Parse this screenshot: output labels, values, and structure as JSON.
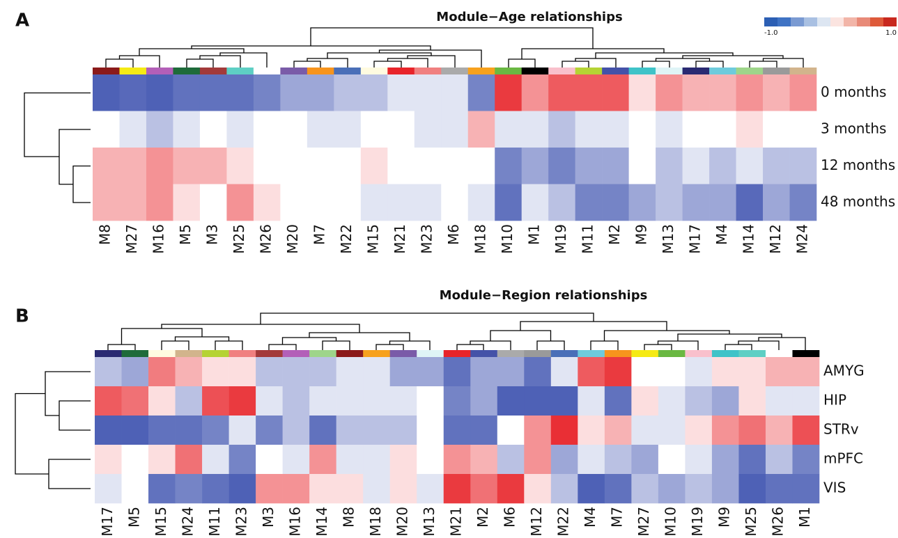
{
  "module_colors": {
    "M1": "#000000",
    "M2": "#4452a8",
    "M3": "#a33a3a",
    "M4": "#6ecbdc",
    "M5": "#1e6b3a",
    "M6": "#aaaaaa",
    "M7": "#f7941d",
    "M8": "#8b1a1a",
    "M9": "#3fc3c8",
    "M10": "#6ab842",
    "M11": "#b5d334",
    "M12": "#9a9a9a",
    "M13": "#dff4f6",
    "M14": "#9ed58a",
    "M15": "#fffbe0",
    "M16": "#b35fb8",
    "M17": "#2a2a72",
    "M18": "#f7a11d",
    "M19": "#f9c0cc",
    "M20": "#7a5ba8",
    "M21": "#e8242a",
    "M22": "#4a6fb8",
    "M23": "#f08080",
    "M24": "#d2b48c",
    "M25": "#5ecfc4",
    "M26": "#ffffff",
    "M27": "#f5ea14"
  },
  "colorscale": {
    "low": "#3a4fae",
    "mid": "#ffffff",
    "high": "#e8242a"
  },
  "colorbar": {
    "colors": [
      "#2c5fb4",
      "#3f73c4",
      "#7a9ad2",
      "#a9c0e2",
      "#dde6f2",
      "#fbe4e0",
      "#f2b5a8",
      "#e88a78",
      "#de5a3a",
      "#c8281e"
    ],
    "ticks": [
      {
        "value": -1,
        "label": "-1.0"
      },
      {
        "value": 1,
        "label": "1.0"
      }
    ]
  },
  "chart_data": [
    {
      "type": "heatmap",
      "panel": "A",
      "title": "Module−Age relationships",
      "x_categories": [
        "M8",
        "M27",
        "M16",
        "M5",
        "M3",
        "M25",
        "M26",
        "M20",
        "M7",
        "M22",
        "M15",
        "M21",
        "M23",
        "M6",
        "M18",
        "M10",
        "M1",
        "M19",
        "M11",
        "M2",
        "M9",
        "M13",
        "M17",
        "M4",
        "M14",
        "M12",
        "M24"
      ],
      "y_categories": [
        "0 months",
        "3 months",
        "12 months",
        "48 months"
      ],
      "values": [
        [
          -0.9,
          -0.85,
          -0.9,
          -0.8,
          -0.8,
          -0.8,
          -0.7,
          -0.5,
          -0.5,
          -0.35,
          -0.35,
          -0.15,
          -0.15,
          -0.15,
          -0.7,
          0.9,
          0.5,
          0.75,
          0.75,
          0.75,
          0.15,
          0.5,
          0.35,
          0.35,
          0.5,
          0.35,
          0.5
        ],
        [
          0,
          -0.15,
          -0.35,
          -0.15,
          0,
          -0.15,
          0,
          0,
          -0.15,
          -0.15,
          0,
          0,
          -0.15,
          -0.15,
          0.35,
          -0.15,
          -0.15,
          -0.35,
          -0.15,
          -0.15,
          0,
          -0.15,
          0,
          0,
          0.15,
          0,
          0
        ],
        [
          0.35,
          0.35,
          0.5,
          0.35,
          0.35,
          0.15,
          0,
          0,
          0,
          0,
          0.15,
          0,
          0,
          0,
          0,
          -0.7,
          -0.5,
          -0.7,
          -0.5,
          -0.5,
          0,
          -0.35,
          -0.15,
          -0.35,
          -0.15,
          -0.35,
          -0.35
        ],
        [
          0.35,
          0.35,
          0.5,
          0.15,
          0,
          0.5,
          0.15,
          0,
          0,
          0,
          -0.15,
          -0.15,
          -0.15,
          0,
          -0.15,
          -0.8,
          -0.15,
          -0.35,
          -0.7,
          -0.7,
          -0.5,
          -0.35,
          -0.5,
          -0.5,
          -0.85,
          -0.5,
          -0.7
        ]
      ]
    },
    {
      "type": "heatmap",
      "panel": "B",
      "title": "Module−Region relationships",
      "x_categories": [
        "M17",
        "M5",
        "M15",
        "M24",
        "M11",
        "M23",
        "M3",
        "M16",
        "M14",
        "M8",
        "M18",
        "M20",
        "M13",
        "M21",
        "M2",
        "M6",
        "M12",
        "M22",
        "M4",
        "M7",
        "M27",
        "M10",
        "M19",
        "M9",
        "M25",
        "M26",
        "M1"
      ],
      "y_categories": [
        "AMYG",
        "HIP",
        "STRv",
        "mPFC",
        "VIS"
      ],
      "values": [
        [
          -0.35,
          -0.5,
          0.6,
          0.35,
          0.15,
          0.15,
          -0.35,
          -0.35,
          -0.35,
          -0.15,
          -0.15,
          -0.5,
          -0.5,
          -0.8,
          -0.5,
          -0.5,
          -0.8,
          -0.15,
          0.75,
          0.9,
          0,
          0,
          -0.15,
          0.15,
          0.15,
          0.35,
          0.35
        ],
        [
          0.75,
          0.65,
          0.15,
          -0.35,
          0.8,
          0.9,
          -0.15,
          -0.35,
          -0.15,
          -0.15,
          -0.15,
          -0.15,
          0,
          -0.7,
          -0.5,
          -0.9,
          -0.9,
          -0.9,
          -0.15,
          -0.8,
          0.15,
          -0.15,
          -0.35,
          -0.5,
          0.15,
          -0.15,
          -0.15
        ],
        [
          -0.9,
          -0.9,
          -0.8,
          -0.8,
          -0.7,
          -0.15,
          -0.7,
          -0.35,
          -0.8,
          -0.35,
          -0.35,
          -0.35,
          0,
          -0.8,
          -0.8,
          0,
          0.5,
          0.95,
          0.15,
          0.35,
          -0.15,
          -0.15,
          0.15,
          0.5,
          0.65,
          0.35,
          0.8
        ],
        [
          0.15,
          0,
          0.15,
          0.65,
          -0.15,
          -0.7,
          0,
          -0.15,
          0.5,
          -0.15,
          -0.15,
          0.15,
          0,
          0.5,
          0.35,
          -0.35,
          0.5,
          -0.5,
          -0.15,
          -0.35,
          -0.5,
          0,
          -0.15,
          -0.5,
          -0.8,
          -0.35,
          -0.7
        ],
        [
          -0.15,
          0,
          -0.8,
          -0.7,
          -0.8,
          -0.9,
          0.5,
          0.5,
          0.15,
          0.15,
          -0.15,
          0.15,
          -0.15,
          0.9,
          0.65,
          0.9,
          0.15,
          -0.35,
          -0.9,
          -0.8,
          -0.35,
          -0.5,
          -0.35,
          -0.5,
          -0.9,
          -0.8,
          -0.8
        ]
      ]
    }
  ]
}
